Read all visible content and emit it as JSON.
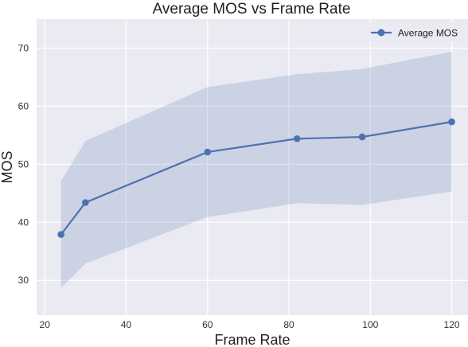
{
  "chart_data": {
    "type": "line",
    "title": "Average MOS vs Frame Rate",
    "xlabel": "Frame Rate",
    "ylabel": "MOS",
    "xlim": [
      18,
      124
    ],
    "ylim": [
      24,
      75
    ],
    "xticks": [
      20,
      40,
      60,
      80,
      100,
      120
    ],
    "yticks": [
      30,
      40,
      50,
      60,
      70
    ],
    "grid": true,
    "legend": "top-right",
    "series": [
      {
        "name": "Average MOS",
        "color": "#4c72b0",
        "marker": "circle",
        "x": [
          24,
          30,
          60,
          82,
          98,
          120
        ],
        "values": [
          37.9,
          43.4,
          52.1,
          54.4,
          54.7,
          57.3
        ],
        "band_lower": [
          28.7,
          32.9,
          40.9,
          43.3,
          43.0,
          45.3
        ],
        "band_upper": [
          47.1,
          54.0,
          63.3,
          65.5,
          66.4,
          69.4
        ],
        "band_color": "#4c72b0"
      }
    ]
  }
}
